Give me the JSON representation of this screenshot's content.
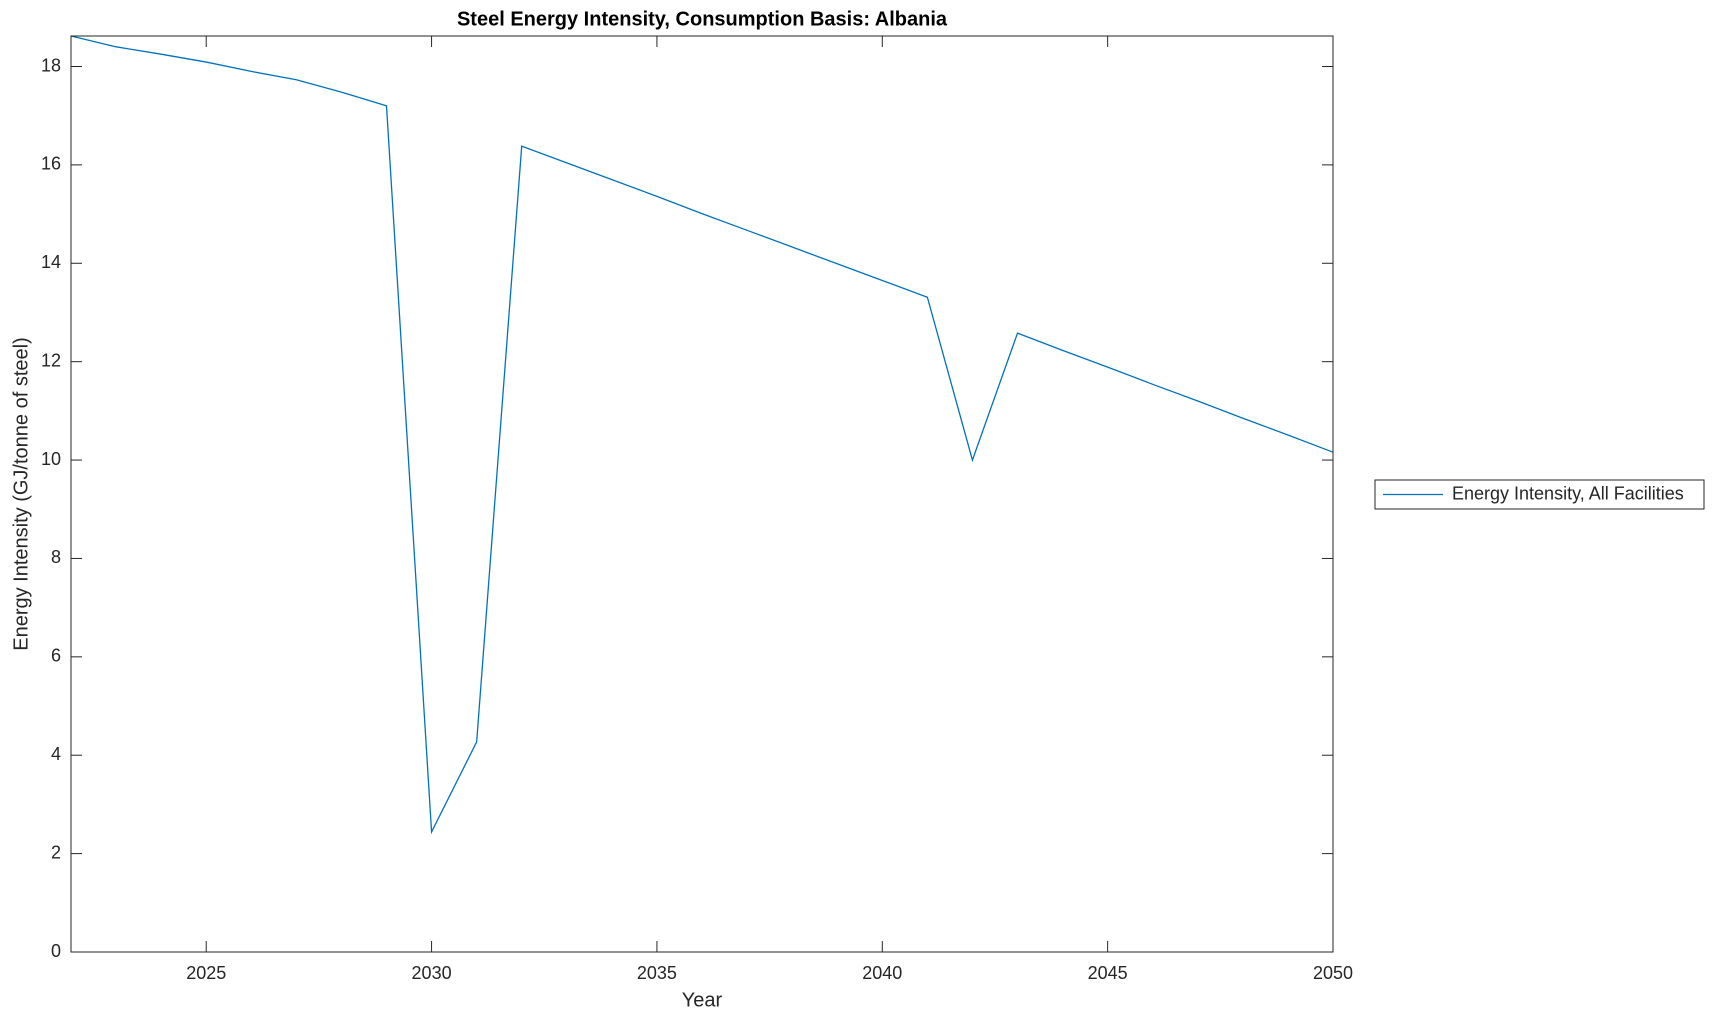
{
  "chart_data": {
    "type": "line",
    "title": "Steel Energy Intensity, Consumption Basis: Albania",
    "x_label": "Year",
    "y_label": "Energy Intensity (GJ/tonne of steel)",
    "x": [
      2022,
      2023,
      2024,
      2025,
      2026,
      2027,
      2028,
      2029,
      2030,
      2031,
      2032,
      2033,
      2034,
      2035,
      2036,
      2037,
      2038,
      2039,
      2040,
      2041,
      2042,
      2043,
      2044,
      2045,
      2046,
      2047,
      2048,
      2049,
      2050
    ],
    "series": [
      {
        "name": "Energy Intensity, All Facilities",
        "color": "#0072bd",
        "values": [
          18.62,
          18.4,
          18.25,
          18.09,
          17.9,
          17.73,
          17.48,
          17.2,
          2.44,
          4.27,
          16.38,
          16.04,
          15.7,
          15.36,
          15.01,
          14.67,
          14.33,
          13.99,
          13.65,
          13.31,
          10.0,
          12.58,
          12.23,
          11.89,
          11.54,
          11.2,
          10.85,
          10.51,
          10.16
        ]
      }
    ],
    "xlim": [
      2022,
      2050
    ],
    "xticks": [
      2025,
      2030,
      2035,
      2040,
      2045,
      2050
    ],
    "ylim": [
      0,
      18.62
    ],
    "yticks": [
      0,
      2,
      4,
      6,
      8,
      10,
      12,
      14,
      16,
      18
    ],
    "grid": false,
    "legend_location": "eastoutside"
  }
}
